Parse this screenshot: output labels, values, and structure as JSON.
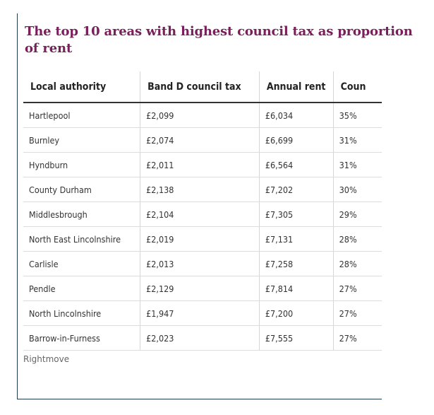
{
  "title": "The top 10 areas with highest council tax as proportion of rent",
  "table": {
    "headers": [
      "Local authority",
      "Band D council tax",
      "Annual rent",
      "Coun"
    ],
    "rows": [
      [
        "Hartlepool",
        "£2,099",
        "£6,034",
        "35%"
      ],
      [
        "Burnley",
        "£2,074",
        "£6,699",
        "31%"
      ],
      [
        "Hyndburn",
        "£2,011",
        "£6,564",
        "31%"
      ],
      [
        "County Durham",
        "£2,138",
        "£7,202",
        "30%"
      ],
      [
        "Middlesbrough",
        "£2,104",
        "£7,305",
        "29%"
      ],
      [
        "North East Lincolnshire",
        "£2,019",
        "£7,131",
        "28%"
      ],
      [
        "Carlisle",
        "£2,013",
        "£7,258",
        "28%"
      ],
      [
        "Pendle",
        "£2,129",
        "£7,814",
        "27%"
      ],
      [
        "North Lincolnshire",
        "£1,947",
        "£7,200",
        "27%"
      ],
      [
        "Barrow-in-Furness",
        "£2,023",
        "£7,555",
        "27%"
      ]
    ]
  },
  "source": "Rightmove",
  "colors": {
    "title": "#7a1f5c",
    "frame": "#1f3b4d"
  }
}
